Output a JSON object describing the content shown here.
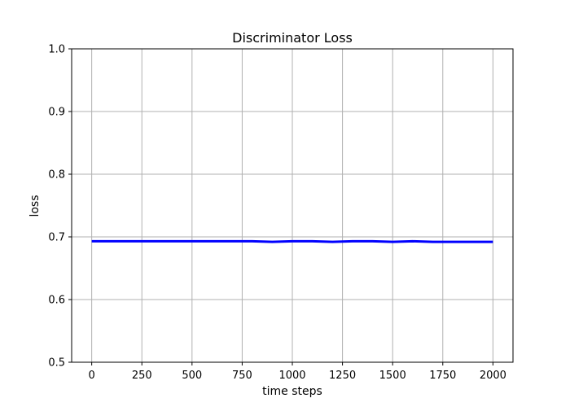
{
  "chart_data": {
    "type": "line",
    "title": "Discriminator Loss",
    "xlabel": "time steps",
    "ylabel": "loss",
    "xlim": [
      -100,
      2100
    ],
    "ylim": [
      0.5,
      1.0
    ],
    "xticks": [
      0,
      250,
      500,
      750,
      1000,
      1250,
      1500,
      1750,
      2000
    ],
    "xtick_labels": [
      "0",
      "250",
      "500",
      "750",
      "1000",
      "1250",
      "1500",
      "1750",
      "2000"
    ],
    "yticks": [
      0.5,
      0.6,
      0.7,
      0.8,
      0.9,
      1.0
    ],
    "ytick_labels": [
      "0.5",
      "0.6",
      "0.7",
      "0.8",
      "0.9",
      "1.0"
    ],
    "grid": true,
    "series": [
      {
        "color": "#0000ff",
        "x": [
          0,
          100,
          200,
          300,
          400,
          500,
          600,
          700,
          800,
          900,
          1000,
          1100,
          1200,
          1300,
          1400,
          1500,
          1600,
          1700,
          1800,
          1900,
          2000
        ],
        "y": [
          0.693,
          0.693,
          0.693,
          0.693,
          0.693,
          0.693,
          0.693,
          0.693,
          0.693,
          0.692,
          0.693,
          0.693,
          0.692,
          0.693,
          0.693,
          0.692,
          0.693,
          0.692,
          0.692,
          0.692,
          0.692
        ]
      }
    ]
  }
}
